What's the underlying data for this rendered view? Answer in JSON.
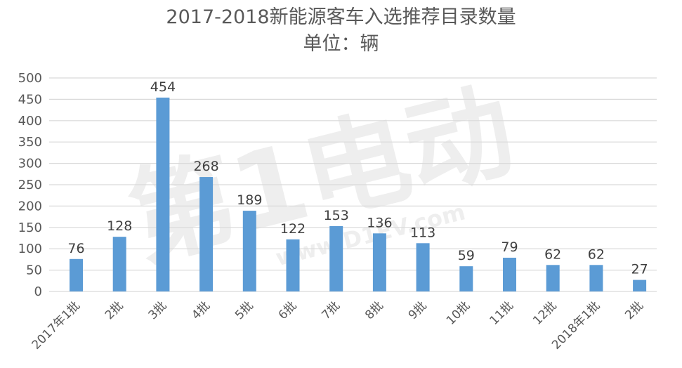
{
  "chart_data": {
    "type": "bar",
    "title": "2017-2018新能源客车入选推荐目录数量",
    "subtitle": "单位：辆",
    "categories": [
      "2017年1批",
      "2批",
      "3批",
      "4批",
      "5批",
      "6批",
      "7批",
      "8批",
      "9批",
      "10批",
      "11批",
      "12批",
      "2018年1批",
      "2批"
    ],
    "values": [
      76,
      128,
      454,
      268,
      189,
      122,
      153,
      136,
      113,
      59,
      79,
      62,
      62,
      27
    ],
    "ylim": [
      0,
      500
    ],
    "yticks": [
      0,
      50,
      100,
      150,
      200,
      250,
      300,
      350,
      400,
      450,
      500
    ],
    "grid": true,
    "data_labels": true,
    "bar_color": "#5B9BD5",
    "grid_color": "#D9D9D9"
  },
  "watermark": {
    "text": "第1电动",
    "url": "www.D1EV.com"
  }
}
